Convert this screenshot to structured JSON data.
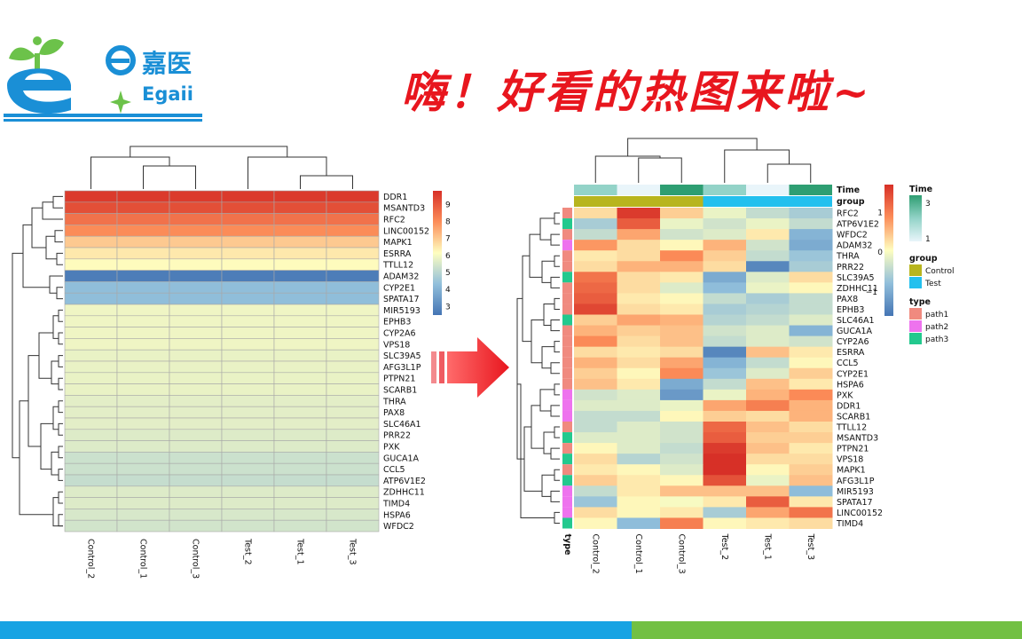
{
  "brand": {
    "name_cn": "嘉医",
    "name_en": "Egaii",
    "blue": "#1a8fd6",
    "green": "#6cc24a"
  },
  "headline": "嗨！好看的热图来啦~",
  "colors": {
    "headline": "#e8161e",
    "bottom_blue": "#17a3e3",
    "bottom_green": "#72c043",
    "arrow": "#e8161e"
  },
  "chart_data": [
    {
      "type": "heatmap",
      "title": "",
      "columns": [
        "Control_2",
        "Control_1",
        "Control_3",
        "Test_2",
        "Test_1",
        "Test_3"
      ],
      "rows": [
        "DDR1",
        "MSANTD3",
        "RFC2",
        "LINC00152",
        "MAPK1",
        "ESRRA",
        "TTLL12",
        "ADAM32",
        "CYP2E1",
        "SPATA17",
        "MIR5193",
        "EPHB3",
        "CYP2A6",
        "VPS18",
        "SLC39A5",
        "AFG3L1P",
        "PTPN21",
        "SCARB1",
        "THRA",
        "PAX8",
        "SLC46A1",
        "PRR22",
        "PXK",
        "GUCA1A",
        "CCL5",
        "ATP6V1E2",
        "ZDHHC11",
        "TIMD4",
        "HSPA6",
        "WFDC2"
      ],
      "row_values": [
        9.6,
        9.2,
        8.5,
        8.0,
        7.0,
        6.5,
        6.2,
        2.7,
        4.3,
        4.3,
        5.9,
        5.9,
        5.9,
        5.9,
        5.8,
        5.8,
        5.8,
        5.8,
        5.7,
        5.7,
        5.7,
        5.6,
        5.6,
        5.3,
        5.3,
        5.2,
        5.6,
        5.6,
        5.5,
        5.4
      ],
      "legend": {
        "min": 2.5,
        "max": 9.8,
        "ticks": [
          "9",
          "8",
          "7",
          "6",
          "5",
          "4",
          "3"
        ],
        "tick_values": [
          9,
          8,
          7,
          6,
          5,
          4,
          3
        ]
      }
    },
    {
      "type": "heatmap",
      "title": "",
      "columns": [
        "Control_2",
        "Control_1",
        "Control_3",
        "Test_2",
        "Test_1",
        "Test_3"
      ],
      "rows": [
        "RFC2",
        "ATP6V1E2",
        "WFDC2",
        "ADAM32",
        "THRA",
        "PRR22",
        "SLC39A5",
        "ZDHHC11",
        "PAX8",
        "EPHB3",
        "SLC46A1",
        "GUCA1A",
        "CYP2A6",
        "ESRRA",
        "CCL5",
        "CYP2E1",
        "HSPA6",
        "PXK",
        "DDR1",
        "SCARB1",
        "TTLL12",
        "MSANTD3",
        "PTPN21",
        "VPS18",
        "MAPK1",
        "AFG3L1P",
        "MIR5193",
        "SPATA17",
        "LINC00152",
        "TIMD4"
      ],
      "values": [
        [
          0.3,
          1.6,
          0.4,
          -0.1,
          -0.4,
          -0.6
        ],
        [
          -0.6,
          1.3,
          -0.1,
          -0.3,
          -0.1,
          -0.4
        ],
        [
          -0.4,
          0.7,
          -0.3,
          -0.2,
          0.2,
          -0.9
        ],
        [
          0.8,
          0.3,
          0.1,
          0.6,
          -0.3,
          -1.0
        ],
        [
          0.2,
          0.3,
          0.9,
          0.4,
          -0.4,
          -0.7
        ],
        [
          0.3,
          0.6,
          0.6,
          0.3,
          -1.4,
          -0.6
        ],
        [
          1.1,
          0.3,
          0.2,
          -1.0,
          -0.2,
          0.3
        ],
        [
          1.2,
          0.3,
          -0.2,
          -0.8,
          -0.1,
          0.1
        ],
        [
          1.3,
          0.2,
          0.1,
          -0.4,
          -0.6,
          -0.4
        ],
        [
          1.5,
          0.3,
          0.2,
          -0.6,
          -0.5,
          -0.4
        ],
        [
          0.4,
          0.7,
          0.6,
          -0.5,
          -0.4,
          -0.2
        ],
        [
          0.6,
          0.4,
          0.5,
          -0.3,
          -0.2,
          -0.9
        ],
        [
          0.9,
          0.3,
          0.5,
          -0.4,
          -0.2,
          -0.3
        ],
        [
          0.3,
          0.2,
          0.3,
          -1.4,
          0.5,
          0.2
        ],
        [
          0.6,
          0.3,
          0.7,
          -0.9,
          -0.4,
          0.1
        ],
        [
          0.4,
          0.1,
          0.9,
          -0.7,
          -0.2,
          0.4
        ],
        [
          0.5,
          0.2,
          -1.0,
          -0.4,
          0.5,
          0.2
        ],
        [
          -0.3,
          -0.2,
          -1.2,
          -0.1,
          0.6,
          0.9
        ],
        [
          -0.2,
          -0.2,
          -0.1,
          0.7,
          1.0,
          0.6
        ],
        [
          -0.4,
          -0.4,
          0.1,
          0.4,
          0.3,
          0.6
        ],
        [
          -0.4,
          -0.2,
          -0.3,
          1.2,
          0.5,
          0.3
        ],
        [
          -0.2,
          -0.2,
          -0.3,
          1.3,
          0.4,
          0.4
        ],
        [
          0.1,
          -0.2,
          -0.4,
          1.6,
          0.5,
          0.2
        ],
        [
          0.3,
          -0.5,
          -0.3,
          1.7,
          0.3,
          0.3
        ],
        [
          0.2,
          0.1,
          -0.2,
          1.7,
          0.1,
          0.4
        ],
        [
          0.4,
          0.2,
          0.1,
          1.4,
          -0.1,
          0.5
        ],
        [
          -0.4,
          0.2,
          0.5,
          0.5,
          0.5,
          -0.8
        ],
        [
          -0.7,
          0.1,
          0.0,
          0.2,
          1.3,
          0.2
        ],
        [
          0.3,
          0.1,
          0.2,
          -0.6,
          0.7,
          1.1
        ],
        [
          0.1,
          -0.8,
          1.0,
          0.1,
          0.2,
          0.3
        ]
      ],
      "row_types": [
        "path1",
        "path3",
        "path1",
        "path2",
        "path1",
        "path1",
        "path3",
        "path1",
        "path1",
        "path1",
        "path3",
        "path1",
        "path1",
        "path1",
        "path1",
        "path1",
        "path1",
        "path2",
        "path2",
        "path2",
        "path1",
        "path3",
        "path1",
        "path3",
        "path1",
        "path3",
        "path2",
        "path2",
        "path2",
        "path3"
      ],
      "col_time": [
        "2",
        "1",
        "3",
        "2",
        "1",
        "3"
      ],
      "col_group": [
        "Control",
        "Control",
        "Control",
        "Test",
        "Test",
        "Test"
      ],
      "annotation_labels": {
        "time": "Time",
        "group": "group",
        "type": "type"
      },
      "legend": {
        "min": -1.6,
        "max": 1.7,
        "ticks": [
          "1",
          "0",
          "−1"
        ],
        "tick_values": [
          1,
          0,
          -1
        ],
        "time_title": "Time",
        "time_levels": [
          "3",
          "",
          "1"
        ],
        "group_title": "group",
        "group_levels": [
          "Control",
          "Test"
        ],
        "type_title": "type",
        "type_levels": [
          "path1",
          "path2",
          "path3"
        ]
      },
      "annotation_colors": {
        "time": {
          "3": "#2e9e72",
          "2": "#93d3c8",
          "1": "#e9f5fa"
        },
        "group": {
          "Control": "#b8b51e",
          "Test": "#23c0ee"
        },
        "type": {
          "path1": "#f08a7f",
          "path2": "#ee73ee",
          "path3": "#23c98e"
        }
      }
    }
  ]
}
